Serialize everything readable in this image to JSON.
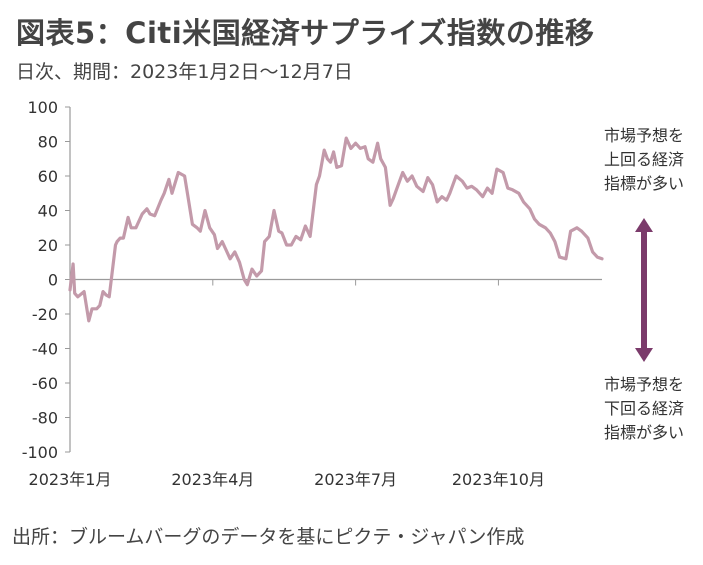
{
  "title": "図表5：Citi米国経済サプライズ指数の推移",
  "subtitle": "日次、期間：2023年1月2日～12月7日",
  "source": "出所：ブルームバーグのデータを基にピクテ・ジャパン作成",
  "colors": {
    "series": "#c39aaa",
    "arrow": "#7b3b6b",
    "axis": "#9a9a9a",
    "text": "#444444"
  },
  "annotations": {
    "upper": [
      "市場予想を",
      "上回る経済",
      "指標が多い"
    ],
    "lower": [
      "市場予想を",
      "下回る経済",
      "指標が多い"
    ]
  },
  "chart_data": {
    "type": "line",
    "title": "Citi米国経済サプライズ指数の推移",
    "ylim": [
      -100,
      100
    ],
    "yticks": [
      -100,
      -80,
      -60,
      -40,
      -20,
      0,
      20,
      40,
      60,
      80,
      100
    ],
    "xlim": [
      "2023-01-02",
      "2023-12-07"
    ],
    "xticks": [
      {
        "date": "2023-01-02",
        "label": "2023年1月"
      },
      {
        "date": "2023-04-03",
        "label": "2023年4月"
      },
      {
        "date": "2023-07-03",
        "label": "2023年7月"
      },
      {
        "date": "2023-10-02",
        "label": "2023年10月"
      }
    ],
    "grid": false,
    "legend": "none",
    "series": [
      {
        "x": [
          "2023-01-02",
          "2023-01-04",
          "2023-01-05",
          "2023-01-07",
          "2023-01-11",
          "2023-01-14",
          "2023-01-16",
          "2023-01-19",
          "2023-01-21",
          "2023-01-23",
          "2023-01-25",
          "2023-01-27",
          "2023-01-31",
          "2023-02-01",
          "2023-02-03",
          "2023-02-05",
          "2023-02-08",
          "2023-02-10",
          "2023-02-13",
          "2023-02-17",
          "2023-02-20",
          "2023-02-22",
          "2023-02-25",
          "2023-03-01",
          "2023-03-03",
          "2023-03-06",
          "2023-03-08",
          "2023-03-12",
          "2023-03-16",
          "2023-03-18",
          "2023-03-21",
          "2023-03-24",
          "2023-03-26",
          "2023-03-29",
          "2023-04-01",
          "2023-04-04",
          "2023-04-06",
          "2023-04-09",
          "2023-04-11",
          "2023-04-14",
          "2023-04-17",
          "2023-04-20",
          "2023-04-23",
          "2023-04-25",
          "2023-04-28",
          "2023-05-01",
          "2023-05-04",
          "2023-05-06",
          "2023-05-09",
          "2023-05-12",
          "2023-05-15",
          "2023-05-17",
          "2023-05-20",
          "2023-05-23",
          "2023-05-26",
          "2023-05-29",
          "2023-06-01",
          "2023-06-04",
          "2023-06-08",
          "2023-06-10",
          "2023-06-13",
          "2023-06-15",
          "2023-06-17",
          "2023-06-19",
          "2023-06-21",
          "2023-06-24",
          "2023-06-27",
          "2023-06-30",
          "2023-07-03",
          "2023-07-06",
          "2023-07-09",
          "2023-07-11",
          "2023-07-14",
          "2023-07-17",
          "2023-07-19",
          "2023-07-22",
          "2023-07-25",
          "2023-07-27",
          "2023-07-29",
          "2023-08-02",
          "2023-08-05",
          "2023-08-08",
          "2023-08-11",
          "2023-08-15",
          "2023-08-18",
          "2023-08-21",
          "2023-08-24",
          "2023-08-27",
          "2023-08-30",
          "2023-09-01",
          "2023-09-05",
          "2023-09-09",
          "2023-09-12",
          "2023-09-15",
          "2023-09-18",
          "2023-09-22",
          "2023-09-25",
          "2023-09-28",
          "2023-10-01",
          "2023-10-05",
          "2023-10-08",
          "2023-10-11",
          "2023-10-15",
          "2023-10-18",
          "2023-10-22",
          "2023-10-25",
          "2023-10-28",
          "2023-11-01",
          "2023-11-04",
          "2023-11-07",
          "2023-11-10",
          "2023-11-14",
          "2023-11-17",
          "2023-11-21",
          "2023-11-24",
          "2023-11-28",
          "2023-12-01",
          "2023-12-04",
          "2023-12-07"
        ],
        "values": [
          -6,
          9,
          -8,
          -10,
          -7,
          -24,
          -17,
          -17,
          -15,
          -7,
          -9,
          -10,
          20,
          22,
          24,
          24,
          36,
          30,
          30,
          38,
          41,
          38,
          37,
          46,
          50,
          58,
          50,
          62,
          60,
          49,
          32,
          30,
          28,
          40,
          30,
          26,
          18,
          22,
          18,
          12,
          16,
          10,
          0,
          -3,
          6,
          2,
          5,
          22,
          25,
          40,
          28,
          27,
          20,
          20,
          25,
          23,
          31,
          25,
          55,
          60,
          75,
          70,
          68,
          74,
          65,
          66,
          82,
          76,
          79,
          76,
          77,
          70,
          68,
          79,
          70,
          65,
          43,
          47,
          52,
          62,
          57,
          60,
          54,
          51,
          59,
          55,
          45,
          48,
          46,
          50,
          60,
          57,
          53,
          54,
          52,
          48,
          53,
          50,
          64,
          62,
          53,
          52,
          50,
          45,
          41,
          35,
          32,
          30,
          27,
          22,
          13,
          12,
          28,
          30,
          28,
          24,
          16,
          13,
          12
        ]
      }
    ]
  }
}
